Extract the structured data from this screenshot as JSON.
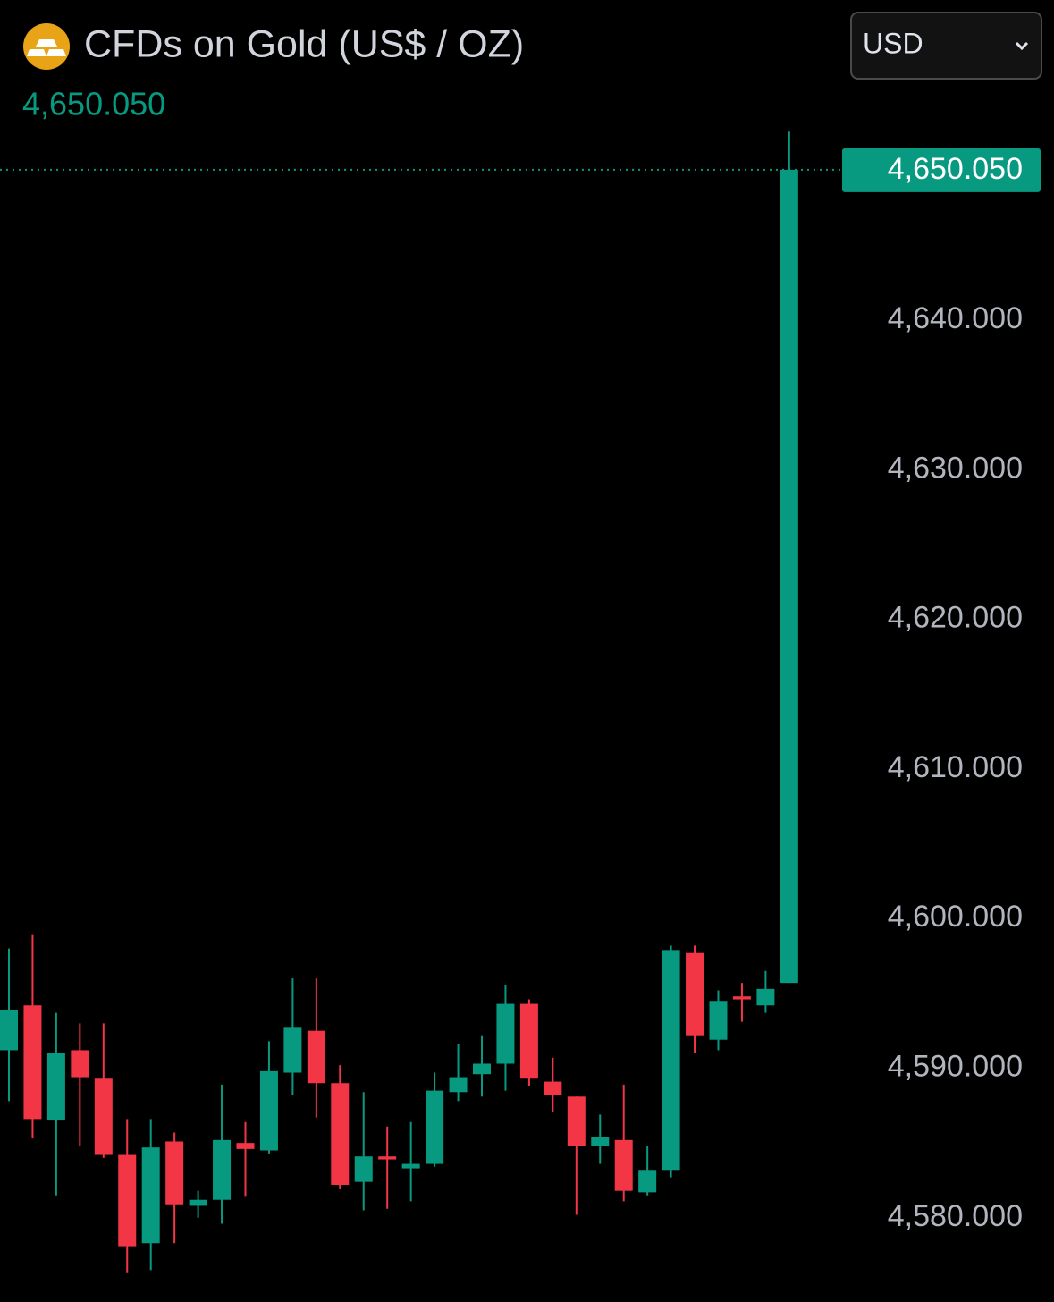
{
  "header": {
    "title": "CFDs on Gold (US$ / OZ)",
    "price": "4,650.050",
    "currency": "USD"
  },
  "chart_data": {
    "type": "candlestick",
    "open": [
      4591.2,
      4594.2,
      4586.5,
      4591.2,
      4589.3,
      4584.2,
      4578.3,
      4585.1,
      4580.8,
      4581.2,
      4585.0,
      4584.5,
      4589.7,
      4592.5,
      4589.0,
      4582.4,
      4584.1,
      4583.3,
      4583.6,
      4588.4,
      4589.6,
      4590.3,
      4594.3,
      4589.1,
      4588.1,
      4584.8,
      4585.2,
      4581.7,
      4583.2,
      4597.7,
      4591.9,
      4594.8,
      4594.2,
      4595.7
    ],
    "high": [
      4598.0,
      4598.9,
      4593.7,
      4593.0,
      4593.0,
      4586.6,
      4586.6,
      4585.7,
      4581.8,
      4588.9,
      4586.4,
      4591.8,
      4596.0,
      4596.0,
      4590.2,
      4588.4,
      4586.1,
      4586.4,
      4589.7,
      4591.6,
      4592.2,
      4595.6,
      4594.6,
      4590.7,
      4588.1,
      4586.9,
      4588.9,
      4584.8,
      4598.2,
      4598.2,
      4595.2,
      4595.7,
      4596.5,
      4652.6
    ],
    "low": [
      4587.8,
      4585.3,
      4581.5,
      4584.8,
      4584.0,
      4576.3,
      4576.5,
      4578.3,
      4580.0,
      4579.6,
      4581.4,
      4584.3,
      4588.2,
      4586.7,
      4581.9,
      4580.5,
      4580.6,
      4581.1,
      4583.4,
      4587.8,
      4588.1,
      4588.5,
      4588.8,
      4587.1,
      4580.2,
      4583.6,
      4581.1,
      4581.5,
      4582.7,
      4591.0,
      4591.2,
      4593.1,
      4593.7,
      4595.7
    ],
    "close": [
      4593.9,
      4586.6,
      4591.0,
      4589.4,
      4584.2,
      4578.1,
      4584.7,
      4580.9,
      4581.2,
      4585.2,
      4584.6,
      4589.8,
      4592.7,
      4589.0,
      4582.2,
      4584.1,
      4583.9,
      4583.6,
      4588.5,
      4589.4,
      4590.3,
      4594.3,
      4589.3,
      4588.2,
      4584.8,
      4585.4,
      4581.8,
      4583.2,
      4597.9,
      4592.2,
      4594.5,
      4594.6,
      4595.3,
      4650.05
    ],
    "up_color": "#089981",
    "down_color": "#f23645",
    "ylim": [
      4574.37,
      4661.4
    ],
    "yticks": [
      {
        "value": 4580,
        "label": "4,580.000"
      },
      {
        "value": 4590,
        "label": "4,590.000"
      },
      {
        "value": 4600,
        "label": "4,600.000"
      },
      {
        "value": 4610,
        "label": "4,610.000"
      },
      {
        "value": 4620,
        "label": "4,620.000"
      },
      {
        "value": 4630,
        "label": "4,630.000"
      },
      {
        "value": 4640,
        "label": "4,640.000"
      }
    ],
    "grid": false,
    "last_price": {
      "value": 4650.05,
      "label": "4,650.050"
    }
  }
}
